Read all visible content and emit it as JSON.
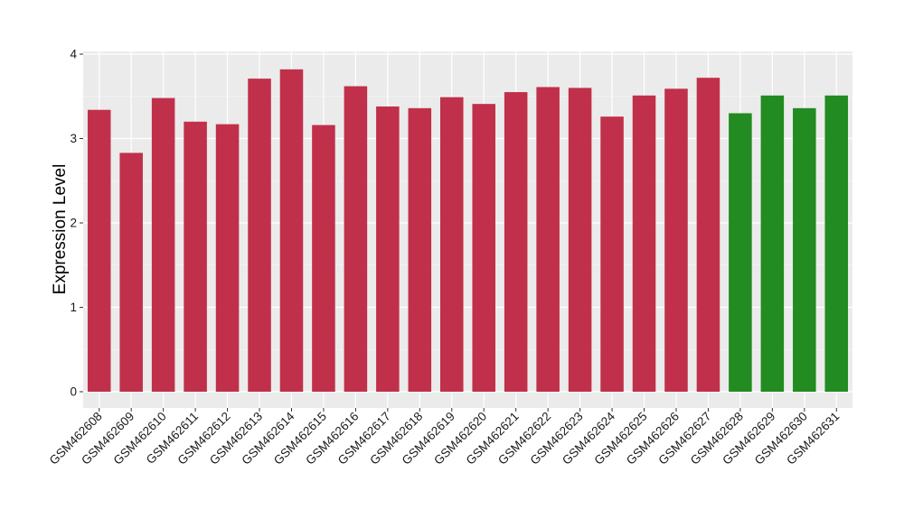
{
  "chart_data": {
    "type": "bar",
    "title": "",
    "xlabel": "",
    "ylabel": "Expression Level",
    "ylim": [
      0,
      4
    ],
    "yticks": [
      0,
      1,
      2,
      3,
      4
    ],
    "grid": true,
    "legend": "none",
    "categories": [
      "GSM462608",
      "GSM462609",
      "GSM462610",
      "GSM462611",
      "GSM462612",
      "GSM462613",
      "GSM462614",
      "GSM462615",
      "GSM462616",
      "GSM462617",
      "GSM462618",
      "GSM462619",
      "GSM462620",
      "GSM462621",
      "GSM462622",
      "GSM462623",
      "GSM462624",
      "GSM462625",
      "GSM462626",
      "GSM462627",
      "GSM462628",
      "GSM462629",
      "GSM462630",
      "GSM462631"
    ],
    "values": [
      3.34,
      2.83,
      3.48,
      3.2,
      3.17,
      3.71,
      3.82,
      3.16,
      3.62,
      3.38,
      3.36,
      3.49,
      3.41,
      3.55,
      3.61,
      3.6,
      3.26,
      3.51,
      3.59,
      3.72,
      3.3,
      3.51,
      3.36,
      3.51
    ],
    "bar_colors": [
      "#c0304a",
      "#c0304a",
      "#c0304a",
      "#c0304a",
      "#c0304a",
      "#c0304a",
      "#c0304a",
      "#c0304a",
      "#c0304a",
      "#c0304a",
      "#c0304a",
      "#c0304a",
      "#c0304a",
      "#c0304a",
      "#c0304a",
      "#c0304a",
      "#c0304a",
      "#c0304a",
      "#c0304a",
      "#c0304a",
      "#228b22",
      "#228b22",
      "#228b22",
      "#228b22"
    ],
    "panel_background": "#ebebeb",
    "grid_color": "#ffffff"
  }
}
